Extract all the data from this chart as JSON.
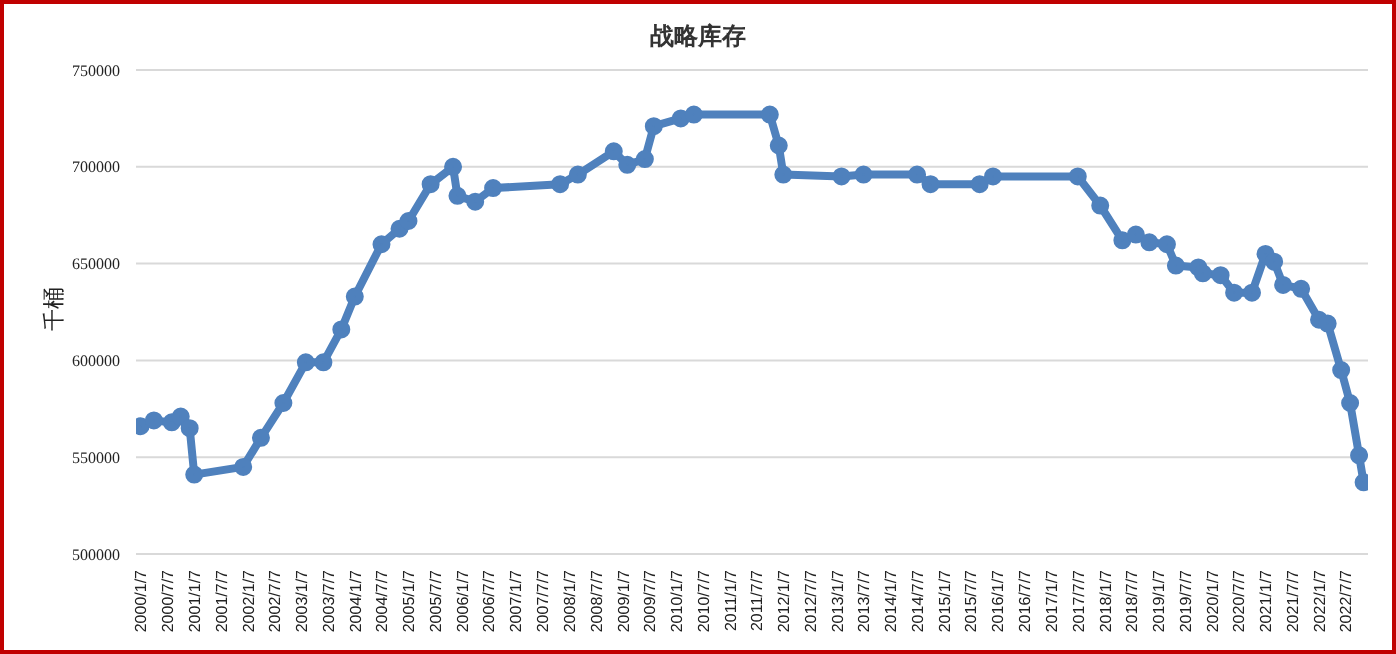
{
  "chart_data": {
    "type": "line",
    "title": "战略库存",
    "ylabel": "千桶",
    "marker": "circle",
    "grid": "y",
    "legend": false,
    "x": [
      "2000-01",
      "2000-04",
      "2000-08",
      "2000-10",
      "2000-12",
      "2001-01",
      "2001-12",
      "2002-04",
      "2002-09",
      "2003-02",
      "2003-06",
      "2003-10",
      "2004-01",
      "2004-07",
      "2004-11",
      "2005-01",
      "2005-06",
      "2005-11",
      "2005-12",
      "2006-04",
      "2006-08",
      "2007-11",
      "2008-03",
      "2008-11",
      "2009-02",
      "2009-06",
      "2009-08",
      "2010-02",
      "2010-05",
      "2011-10",
      "2011-12",
      "2012-01",
      "2013-02",
      "2013-07",
      "2014-07",
      "2014-10",
      "2015-09",
      "2015-12",
      "2017-07",
      "2017-12",
      "2018-05",
      "2018-08",
      "2018-11",
      "2019-03",
      "2019-05",
      "2019-10",
      "2019-11",
      "2020-03",
      "2020-06",
      "2020-10",
      "2021-01",
      "2021-03",
      "2021-05",
      "2021-09",
      "2022-01",
      "2022-03",
      "2022-06",
      "2022-08",
      "2022-10",
      "2022-11"
    ],
    "series": [
      {
        "color": "#4f81bd",
        "values": [
          566000,
          569000,
          568000,
          571000,
          565000,
          541000,
          545000,
          560000,
          578000,
          599000,
          599000,
          616000,
          633000,
          660000,
          668000,
          672000,
          691000,
          700000,
          685000,
          682000,
          689000,
          691000,
          696000,
          708000,
          701000,
          704000,
          721000,
          725000,
          727000,
          727000,
          711000,
          696000,
          695000,
          696000,
          696000,
          691000,
          691000,
          695000,
          695000,
          680000,
          662000,
          665000,
          661000,
          660000,
          649000,
          648000,
          645000,
          644000,
          635000,
          635000,
          655000,
          651000,
          639000,
          637000,
          621000,
          619000,
          595000,
          578000,
          551000,
          537000
        ]
      }
    ],
    "xlim": [
      "1999-12",
      "2022-12"
    ],
    "xticks": [
      {
        "value": "2000-01-07",
        "label": "2000/1/7"
      },
      {
        "value": "2000-07-07",
        "label": "2000/7/7"
      },
      {
        "value": "2001-01-07",
        "label": "2001/1/7"
      },
      {
        "value": "2001-07-07",
        "label": "2001/7/7"
      },
      {
        "value": "2002-01-07",
        "label": "2002/1/7"
      },
      {
        "value": "2002-07-07",
        "label": "2002/7/7"
      },
      {
        "value": "2003-01-07",
        "label": "2003/1/7"
      },
      {
        "value": "2003-07-07",
        "label": "2003/7/7"
      },
      {
        "value": "2004-01-07",
        "label": "2004/1/7"
      },
      {
        "value": "2004-07-07",
        "label": "2004/7/7"
      },
      {
        "value": "2005-01-07",
        "label": "2005/1/7"
      },
      {
        "value": "2005-07-07",
        "label": "2005/7/7"
      },
      {
        "value": "2006-01-07",
        "label": "2006/1/7"
      },
      {
        "value": "2006-07-07",
        "label": "2006/7/7"
      },
      {
        "value": "2007-01-07",
        "label": "2007/1/7"
      },
      {
        "value": "2007-07-07",
        "label": "2007/7/7"
      },
      {
        "value": "2008-01-07",
        "label": "2008/1/7"
      },
      {
        "value": "2008-07-07",
        "label": "2008/7/7"
      },
      {
        "value": "2009-01-07",
        "label": "2009/1/7"
      },
      {
        "value": "2009-07-07",
        "label": "2009/7/7"
      },
      {
        "value": "2010-01-07",
        "label": "2010/1/7"
      },
      {
        "value": "2010-07-07",
        "label": "2010/7/7"
      },
      {
        "value": "2011-01-07",
        "label": "2011/1/7"
      },
      {
        "value": "2011-07-07",
        "label": "2011/7/7"
      },
      {
        "value": "2012-01-07",
        "label": "2012/1/7"
      },
      {
        "value": "2012-07-07",
        "label": "2012/7/7"
      },
      {
        "value": "2013-01-07",
        "label": "2013/1/7"
      },
      {
        "value": "2013-07-07",
        "label": "2013/7/7"
      },
      {
        "value": "2014-01-07",
        "label": "2014/1/7"
      },
      {
        "value": "2014-07-07",
        "label": "2014/7/7"
      },
      {
        "value": "2015-01-07",
        "label": "2015/1/7"
      },
      {
        "value": "2015-07-07",
        "label": "2015/7/7"
      },
      {
        "value": "2016-01-07",
        "label": "2016/1/7"
      },
      {
        "value": "2016-07-07",
        "label": "2016/7/7"
      },
      {
        "value": "2017-01-07",
        "label": "2017/1/7"
      },
      {
        "value": "2017-07-07",
        "label": "2017/7/7"
      },
      {
        "value": "2018-01-07",
        "label": "2018/1/7"
      },
      {
        "value": "2018-07-07",
        "label": "2018/7/7"
      },
      {
        "value": "2019-01-07",
        "label": "2019/1/7"
      },
      {
        "value": "2019-07-07",
        "label": "2019/7/7"
      },
      {
        "value": "2020-01-07",
        "label": "2020/1/7"
      },
      {
        "value": "2020-07-07",
        "label": "2020/7/7"
      },
      {
        "value": "2021-01-07",
        "label": "2021/1/7"
      },
      {
        "value": "2021-07-07",
        "label": "2021/7/7"
      },
      {
        "value": "2022-01-07",
        "label": "2022/1/7"
      },
      {
        "value": "2022-07-07",
        "label": "2022/7/7"
      }
    ],
    "ylim": [
      500000,
      750000
    ],
    "yticks": [
      500000,
      550000,
      600000,
      650000,
      700000,
      750000
    ]
  }
}
